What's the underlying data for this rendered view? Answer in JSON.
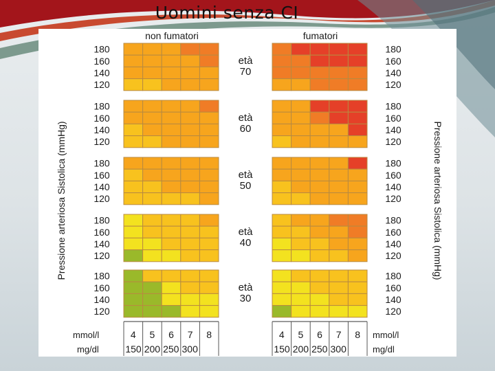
{
  "slide": {
    "title": "Uomini senza CI"
  },
  "colors": {
    "c1": "#9ab92a",
    "c2": "#f3e21f",
    "c3": "#f8c21e",
    "c4": "#f7a51d",
    "c5": "#f07c26",
    "c6": "#e54028",
    "grid_line": "#b88a40"
  },
  "chart": {
    "left_header": "non fumatori",
    "right_header": "fumatori",
    "left_axis_label": "Pressione arteriosa Sistolica (mmHg)",
    "right_axis_label": "Pressione arteriosa Sistolica (mmHg)",
    "age_word": "età",
    "pressure_levels": [
      "180",
      "160",
      "140",
      "120"
    ],
    "mmol_label": "mmol/l",
    "mgdl_label": "mg/dl",
    "mmol_values": [
      "4",
      "5",
      "6",
      "7",
      "8"
    ],
    "mgdl_values": [
      "150",
      "200",
      "250",
      "300"
    ]
  },
  "chart_data": {
    "type": "heatmap",
    "columns_mmol": [
      4,
      5,
      6,
      7,
      8
    ],
    "rows_mmhg": [
      180,
      160,
      140,
      120
    ],
    "risk_class_scale": [
      1,
      2,
      3,
      4,
      5,
      6
    ],
    "groups": [
      {
        "age": "70",
        "non_smokers": [
          [
            4,
            4,
            4,
            5,
            5
          ],
          [
            4,
            4,
            4,
            4,
            5
          ],
          [
            4,
            4,
            4,
            4,
            4
          ],
          [
            3,
            3,
            4,
            4,
            4
          ]
        ],
        "smokers": [
          [
            5,
            6,
            6,
            6,
            6
          ],
          [
            5,
            5,
            6,
            6,
            6
          ],
          [
            5,
            5,
            5,
            5,
            5
          ],
          [
            4,
            4,
            5,
            5,
            5
          ]
        ]
      },
      {
        "age": "60",
        "non_smokers": [
          [
            4,
            4,
            4,
            4,
            5
          ],
          [
            4,
            4,
            4,
            4,
            4
          ],
          [
            3,
            4,
            4,
            4,
            4
          ],
          [
            3,
            3,
            4,
            4,
            4
          ]
        ],
        "smokers": [
          [
            4,
            4,
            6,
            6,
            6
          ],
          [
            4,
            4,
            5,
            6,
            6
          ],
          [
            4,
            4,
            4,
            4,
            6
          ],
          [
            3,
            4,
            4,
            4,
            4
          ]
        ]
      },
      {
        "age": "50",
        "non_smokers": [
          [
            4,
            4,
            4,
            4,
            4
          ],
          [
            3,
            4,
            4,
            4,
            4
          ],
          [
            3,
            3,
            4,
            4,
            4
          ],
          [
            3,
            3,
            3,
            3,
            4
          ]
        ],
        "smokers": [
          [
            4,
            4,
            4,
            4,
            6
          ],
          [
            4,
            4,
            4,
            4,
            4
          ],
          [
            3,
            4,
            4,
            4,
            4
          ],
          [
            3,
            3,
            4,
            4,
            4
          ]
        ]
      },
      {
        "age": "40",
        "non_smokers": [
          [
            2,
            3,
            3,
            3,
            4
          ],
          [
            2,
            3,
            3,
            3,
            3
          ],
          [
            2,
            2,
            3,
            3,
            3
          ],
          [
            1,
            2,
            2,
            3,
            3
          ]
        ],
        "smokers": [
          [
            3,
            4,
            4,
            5,
            5
          ],
          [
            3,
            3,
            4,
            4,
            5
          ],
          [
            2,
            3,
            3,
            4,
            4
          ],
          [
            2,
            2,
            3,
            3,
            4
          ]
        ]
      },
      {
        "age": "30",
        "non_smokers": [
          [
            1,
            3,
            3,
            3,
            3
          ],
          [
            1,
            1,
            2,
            3,
            3
          ],
          [
            1,
            1,
            2,
            2,
            2
          ],
          [
            1,
            1,
            1,
            2,
            2
          ]
        ],
        "smokers": [
          [
            2,
            3,
            3,
            3,
            3
          ],
          [
            2,
            2,
            3,
            3,
            3
          ],
          [
            2,
            2,
            2,
            3,
            3
          ],
          [
            1,
            2,
            2,
            2,
            2
          ]
        ]
      }
    ]
  }
}
